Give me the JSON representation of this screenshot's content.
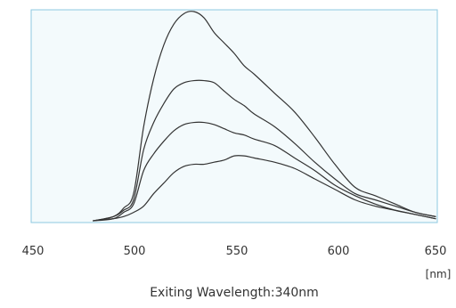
{
  "chart_data": {
    "type": "line",
    "xlabel": "Exiting Wavelength:340nm",
    "x_unit": "[nm]",
    "xlim": [
      450,
      650
    ],
    "ylim": [
      0,
      1
    ],
    "x_ticks": [
      450,
      500,
      550,
      600,
      650
    ],
    "tick_labels": [
      "450",
      "500",
      "550",
      "600",
      "650"
    ],
    "grid": false,
    "colors": {
      "line": "#333333",
      "plot_bg": "#f3fafc",
      "plot_border": "#8cc8e0"
    },
    "series": [
      {
        "x": [
          480,
          490,
          495,
          500,
          505,
          510,
          515,
          520,
          525,
          530,
          535,
          540,
          545,
          550,
          555,
          560,
          570,
          580,
          590,
          600,
          610,
          620,
          630,
          640,
          650
        ],
        "values": [
          0.0,
          0.02,
          0.06,
          0.13,
          0.45,
          0.68,
          0.84,
          0.94,
          0.99,
          1.0,
          0.97,
          0.9,
          0.85,
          0.8,
          0.74,
          0.7,
          0.61,
          0.52,
          0.4,
          0.27,
          0.16,
          0.12,
          0.08,
          0.04,
          0.02
        ]
      },
      {
        "x": [
          480,
          490,
          495,
          500,
          505,
          510,
          515,
          520,
          525,
          530,
          535,
          540,
          545,
          550,
          555,
          560,
          570,
          580,
          590,
          600,
          610,
          620,
          630,
          640,
          650
        ],
        "values": [
          0.0,
          0.02,
          0.05,
          0.1,
          0.34,
          0.47,
          0.56,
          0.63,
          0.66,
          0.67,
          0.67,
          0.66,
          0.62,
          0.58,
          0.55,
          0.51,
          0.45,
          0.37,
          0.28,
          0.2,
          0.13,
          0.1,
          0.07,
          0.04,
          0.02
        ]
      },
      {
        "x": [
          480,
          490,
          495,
          500,
          505,
          510,
          515,
          520,
          525,
          530,
          535,
          540,
          545,
          550,
          555,
          560,
          570,
          580,
          590,
          600,
          610,
          620,
          630,
          640,
          650
        ],
        "values": [
          0.0,
          0.01,
          0.04,
          0.08,
          0.24,
          0.32,
          0.38,
          0.43,
          0.46,
          0.47,
          0.47,
          0.46,
          0.44,
          0.42,
          0.41,
          0.39,
          0.36,
          0.3,
          0.24,
          0.17,
          0.12,
          0.08,
          0.05,
          0.03,
          0.01
        ]
      },
      {
        "x": [
          480,
          490,
          495,
          500,
          505,
          510,
          515,
          520,
          525,
          530,
          535,
          540,
          545,
          550,
          555,
          560,
          570,
          580,
          590,
          600,
          610,
          620,
          630,
          640,
          650
        ],
        "values": [
          0.0,
          0.01,
          0.02,
          0.04,
          0.07,
          0.13,
          0.18,
          0.23,
          0.26,
          0.27,
          0.27,
          0.28,
          0.29,
          0.31,
          0.31,
          0.3,
          0.28,
          0.25,
          0.2,
          0.15,
          0.1,
          0.07,
          0.05,
          0.03,
          0.01
        ]
      }
    ]
  }
}
